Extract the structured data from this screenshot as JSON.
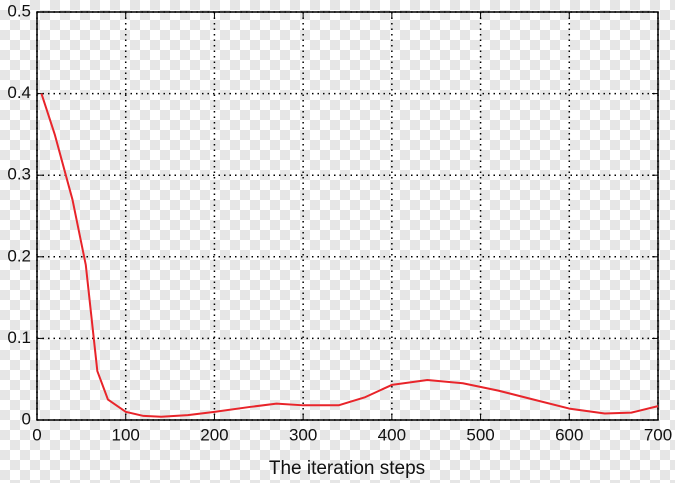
{
  "chart_data": {
    "type": "line",
    "x_label": "The iteration steps",
    "x": [
      5,
      20,
      40,
      55,
      62,
      68,
      80,
      100,
      120,
      140,
      170,
      200,
      240,
      270,
      300,
      340,
      370,
      400,
      440,
      480,
      520,
      560,
      600,
      640,
      670,
      700
    ],
    "series": [
      {
        "color": "#e8242a",
        "values": [
          0.4,
          0.35,
          0.27,
          0.19,
          0.12,
          0.06,
          0.025,
          0.01,
          0.005,
          0.004,
          0.006,
          0.01,
          0.016,
          0.02,
          0.018,
          0.018,
          0.028,
          0.043,
          0.049,
          0.045,
          0.036,
          0.025,
          0.014,
          0.008,
          0.009,
          0.017
        ]
      }
    ],
    "xlim": [
      0,
      700
    ],
    "xticks": [
      0,
      100,
      200,
      300,
      400,
      500,
      600,
      700
    ],
    "ylim": [
      0,
      0.5
    ],
    "yticks": [
      0,
      0.1,
      0.2,
      0.3,
      0.4,
      0.5
    ],
    "grid": true
  }
}
